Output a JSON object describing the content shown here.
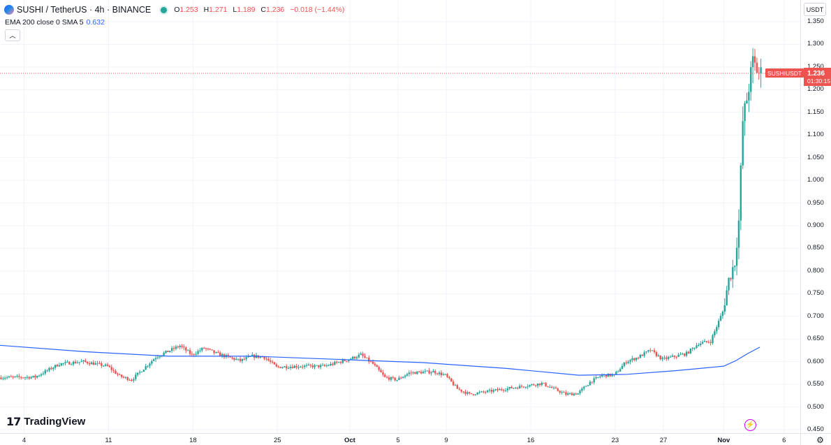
{
  "header": {
    "title": "SUSHI / TetherUS · 4h · BINANCE",
    "ohlc": [
      {
        "label": "O",
        "value": "1.253"
      },
      {
        "label": "H",
        "value": "1.271"
      },
      {
        "label": "L",
        "value": "1.189"
      },
      {
        "label": "C",
        "value": "1.236"
      }
    ],
    "change": "−0.018 (−1.44%)"
  },
  "indicator": {
    "label": "EMA 200 close 0 SMA 5",
    "value": "0.632"
  },
  "currency": "USDT",
  "ticker_tag": "SUSHIUSDT",
  "price_tag": {
    "price": "1.236",
    "countdown": "01:30:15"
  },
  "brand": "TradingView",
  "icons": {
    "logo": "sushi-coin-icon",
    "collapse": "chevron-up-icon",
    "alert": "lightning-alert-icon",
    "settings": "gear-icon"
  },
  "colors": {
    "up": "#26a69a",
    "down": "#ef5350",
    "ema": "#2962ff",
    "grid": "#f0f3fa"
  },
  "chart_data": {
    "type": "candlestick",
    "symbol": "SUSHI / TetherUS",
    "interval": "4h",
    "exchange": "BINANCE",
    "y_range": [
      0.45,
      1.35
    ],
    "y_ticks": [
      "1.350",
      "1.300",
      "1.250",
      "1.200",
      "1.150",
      "1.100",
      "1.050",
      "1.000",
      "0.950",
      "0.900",
      "0.850",
      "0.800",
      "0.750",
      "0.700",
      "0.650",
      "0.600",
      "0.550",
      "0.500",
      "0.450"
    ],
    "x_ticks": [
      {
        "label": "4",
        "date": "2023-09-04"
      },
      {
        "label": "11",
        "date": "2023-09-11"
      },
      {
        "label": "18",
        "date": "2023-09-18"
      },
      {
        "label": "25",
        "date": "2023-09-25"
      },
      {
        "label": "Oct",
        "date": "2023-10-01",
        "bold": true
      },
      {
        "label": "5",
        "date": "2023-10-05"
      },
      {
        "label": "9",
        "date": "2023-10-09"
      },
      {
        "label": "16",
        "date": "2023-10-16"
      },
      {
        "label": "23",
        "date": "2023-10-23"
      },
      {
        "label": "27",
        "date": "2023-10-27"
      },
      {
        "label": "Nov",
        "date": "2023-11-01",
        "bold": true
      },
      {
        "label": "6",
        "date": "2023-11-06"
      }
    ],
    "x_range": [
      "2023-09-02",
      "2023-11-07"
    ],
    "last_price": 1.236,
    "price_anchors": [
      [
        "2023-09-02",
        0.565
      ],
      [
        "2023-09-05",
        0.566
      ],
      [
        "2023-09-07",
        0.595
      ],
      [
        "2023-09-09",
        0.6
      ],
      [
        "2023-09-11",
        0.59
      ],
      [
        "2023-09-12",
        0.568
      ],
      [
        "2023-09-13",
        0.56
      ],
      [
        "2023-09-14",
        0.585
      ],
      [
        "2023-09-15",
        0.61
      ],
      [
        "2023-09-17",
        0.635
      ],
      [
        "2023-09-18",
        0.615
      ],
      [
        "2023-09-19",
        0.63
      ],
      [
        "2023-09-20",
        0.618
      ],
      [
        "2023-09-22",
        0.602
      ],
      [
        "2023-09-23",
        0.612
      ],
      [
        "2023-09-24",
        0.61
      ],
      [
        "2023-09-25",
        0.588
      ],
      [
        "2023-09-27",
        0.59
      ],
      [
        "2023-09-29",
        0.59
      ],
      [
        "2023-10-01",
        0.605
      ],
      [
        "2023-10-02",
        0.615
      ],
      [
        "2023-10-03",
        0.595
      ],
      [
        "2023-10-04",
        0.565
      ],
      [
        "2023-10-05",
        0.56
      ],
      [
        "2023-10-06",
        0.575
      ],
      [
        "2023-10-08",
        0.578
      ],
      [
        "2023-10-09",
        0.57
      ],
      [
        "2023-10-10",
        0.54
      ],
      [
        "2023-10-11",
        0.528
      ],
      [
        "2023-10-14",
        0.54
      ],
      [
        "2023-10-16",
        0.548
      ],
      [
        "2023-10-17",
        0.552
      ],
      [
        "2023-10-18",
        0.54
      ],
      [
        "2023-10-19",
        0.528
      ],
      [
        "2023-10-20",
        0.53
      ],
      [
        "2023-10-21",
        0.555
      ],
      [
        "2023-10-22",
        0.57
      ],
      [
        "2023-10-23",
        0.57
      ],
      [
        "2023-10-24",
        0.6
      ],
      [
        "2023-10-25",
        0.61
      ],
      [
        "2023-10-26",
        0.625
      ],
      [
        "2023-10-27",
        0.605
      ],
      [
        "2023-10-29",
        0.618
      ],
      [
        "2023-10-30",
        0.64
      ],
      [
        "2023-10-31",
        0.645
      ],
      [
        "2023-11-01",
        0.71
      ],
      [
        "2023-11-01T12:00",
        0.78
      ],
      [
        "2023-11-02",
        0.82
      ],
      [
        "2023-11-02T08:00",
        0.91
      ],
      [
        "2023-11-02T16:00",
        1.13
      ],
      [
        "2023-11-03",
        1.18
      ],
      [
        "2023-11-03T12:00",
        1.26
      ],
      [
        "2023-11-04",
        1.236
      ]
    ],
    "ema_200": [
      [
        "2023-09-02",
        0.636
      ],
      [
        "2023-09-09",
        0.622
      ],
      [
        "2023-09-16",
        0.612
      ],
      [
        "2023-09-23",
        0.612
      ],
      [
        "2023-09-30",
        0.605
      ],
      [
        "2023-10-07",
        0.598
      ],
      [
        "2023-10-14",
        0.585
      ],
      [
        "2023-10-20",
        0.57
      ],
      [
        "2023-10-24",
        0.572
      ],
      [
        "2023-10-28",
        0.58
      ],
      [
        "2023-11-01",
        0.59
      ],
      [
        "2023-11-02",
        0.602
      ],
      [
        "2023-11-03",
        0.618
      ],
      [
        "2023-11-04",
        0.632
      ]
    ]
  }
}
